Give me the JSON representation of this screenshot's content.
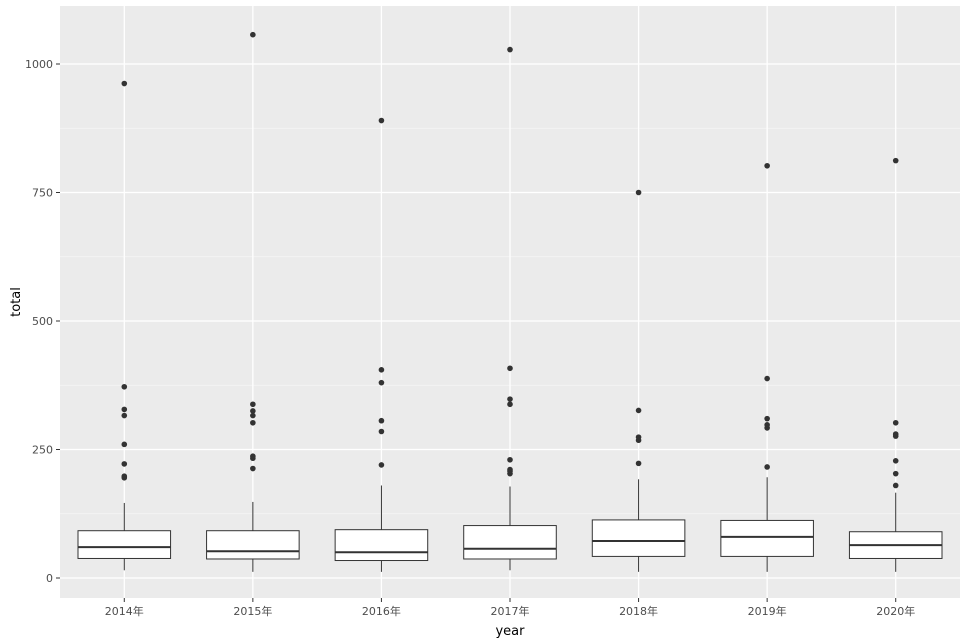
{
  "chart_data": {
    "type": "boxplot",
    "xlabel": "year",
    "ylabel": "total",
    "ylim": [
      -40,
      1110
    ],
    "y_ticks": [
      0,
      250,
      500,
      750,
      1000
    ],
    "y_tick_labels": [
      "0",
      "250",
      "500",
      "750",
      "1000"
    ],
    "grid": true,
    "colors": {
      "panel": "#ebebeb",
      "grid_major": "#ffffff",
      "box_fill": "#ffffff",
      "box_line": "#333333",
      "point": "#333333"
    },
    "categories": [
      "2014年",
      "2015年",
      "2016年",
      "2017年",
      "2018年",
      "2019年",
      "2020年"
    ],
    "boxes": [
      {
        "min": 15,
        "q1": 38,
        "median": 60,
        "q3": 92,
        "max": 146,
        "outliers": [
          195,
          198,
          222,
          260,
          316,
          328,
          372,
          962
        ]
      },
      {
        "min": 12,
        "q1": 37,
        "median": 52,
        "q3": 92,
        "max": 148,
        "outliers": [
          213,
          233,
          237,
          302,
          316,
          325,
          338,
          1057
        ]
      },
      {
        "min": 12,
        "q1": 34,
        "median": 50,
        "q3": 94,
        "max": 180,
        "outliers": [
          220,
          285,
          306,
          380,
          405,
          890
        ]
      },
      {
        "min": 15,
        "q1": 37,
        "median": 57,
        "q3": 102,
        "max": 178,
        "outliers": [
          203,
          208,
          211,
          230,
          338,
          348,
          408,
          1028
        ]
      },
      {
        "min": 12,
        "q1": 42,
        "median": 72,
        "q3": 113,
        "max": 192,
        "outliers": [
          223,
          268,
          274,
          326,
          750
        ]
      },
      {
        "min": 12,
        "q1": 42,
        "median": 80,
        "q3": 112,
        "max": 196,
        "outliers": [
          216,
          292,
          298,
          310,
          388,
          802
        ]
      },
      {
        "min": 12,
        "q1": 38,
        "median": 64,
        "q3": 90,
        "max": 166,
        "outliers": [
          180,
          203,
          228,
          276,
          280,
          302,
          812
        ]
      }
    ]
  }
}
